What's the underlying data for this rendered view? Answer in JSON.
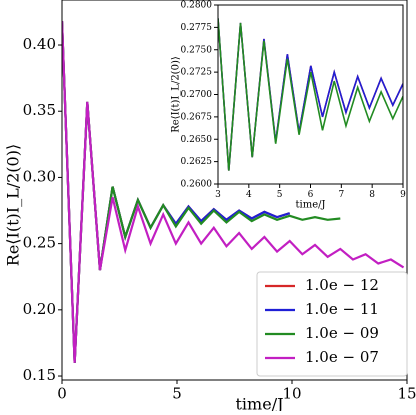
{
  "chart_data": [
    {
      "type": "line",
      "xlabel": "time/J",
      "ylabel": "Re⟨I(t)I_L/2(0)⟩",
      "x": [
        0,
        0.55,
        1.1,
        1.65,
        2.2,
        2.75,
        3.3,
        3.85,
        4.4,
        4.95,
        5.5,
        6.05,
        6.6,
        7.15,
        7.7,
        8.25,
        8.8,
        9.35,
        9.9,
        10.45,
        11,
        11.55,
        12.1,
        12.65,
        13.2,
        13.75,
        14.3,
        14.85
      ],
      "xlim": [
        0,
        15
      ],
      "xticks": [
        0,
        5,
        10,
        15
      ],
      "ylim": [
        0.147,
        0.434
      ],
      "yticks": [
        {
          "value": 0.15,
          "label": "0.15"
        },
        {
          "value": 0.2,
          "label": "0.20"
        },
        {
          "value": 0.25,
          "label": "0.25"
        },
        {
          "value": 0.3,
          "label": "0.30"
        },
        {
          "value": 0.35,
          "label": "0.35"
        },
        {
          "value": 0.4,
          "label": "0.40"
        }
      ],
      "legend": "lower right",
      "series": [
        {
          "name": "1.0e − 12",
          "color": "#d62728",
          "values": [
            0.418,
            0.16,
            0.357,
            0.23,
            0.293,
            0.255,
            0.283,
            0.262,
            0.279,
            0.265,
            0.278,
            0.267,
            0.276,
            0.268,
            0.275,
            0.269,
            0.274,
            0.27,
            0.273,
            null,
            null,
            null,
            null,
            null,
            null,
            null,
            null,
            null
          ]
        },
        {
          "name": "1.0e − 11",
          "color": "#1f1fd6",
          "values": [
            0.418,
            0.16,
            0.357,
            0.23,
            0.293,
            0.255,
            0.283,
            0.262,
            0.279,
            0.265,
            0.278,
            0.267,
            0.276,
            0.268,
            0.275,
            0.269,
            0.274,
            0.27,
            0.273,
            null,
            null,
            null,
            null,
            null,
            null,
            null,
            null,
            null
          ]
        },
        {
          "name": "1.0e − 09",
          "color": "#228b22",
          "values": [
            0.418,
            0.16,
            0.357,
            0.23,
            0.293,
            0.255,
            0.283,
            0.262,
            0.279,
            0.263,
            0.277,
            0.265,
            0.275,
            0.266,
            0.274,
            0.267,
            0.272,
            0.268,
            0.271,
            0.268,
            0.27,
            0.268,
            0.269,
            null,
            null,
            null,
            null,
            null
          ]
        },
        {
          "name": "1.0e − 07",
          "color": "#c21fc2",
          "values": [
            0.418,
            0.16,
            0.357,
            0.23,
            0.285,
            0.245,
            0.278,
            0.25,
            0.272,
            0.25,
            0.266,
            0.25,
            0.262,
            0.248,
            0.258,
            0.246,
            0.255,
            0.244,
            0.252,
            0.242,
            0.249,
            0.24,
            0.246,
            0.238,
            0.242,
            0.235,
            0.238,
            0.232
          ]
        }
      ]
    },
    {
      "type": "line",
      "xlabel": "time/J",
      "ylabel": "Re⟨I(t)I_L/2(0)⟩",
      "x": [
        3,
        3.35,
        3.73,
        4.11,
        4.49,
        4.87,
        5.25,
        5.63,
        6.01,
        6.39,
        6.77,
        7.15,
        7.53,
        7.91,
        8.29,
        8.67,
        9
      ],
      "xlim": [
        3,
        9
      ],
      "xticks": [
        3,
        4,
        5,
        6,
        7,
        8,
        9
      ],
      "ylim": [
        0.26,
        0.28
      ],
      "yticks": [
        {
          "value": 0.26,
          "label": "0.2600"
        },
        {
          "value": 0.2625,
          "label": "0.2625"
        },
        {
          "value": 0.265,
          "label": "0.2650"
        },
        {
          "value": 0.2675,
          "label": "0.2675"
        },
        {
          "value": 0.27,
          "label": "0.2700"
        },
        {
          "value": 0.2725,
          "label": "0.2725"
        },
        {
          "value": 0.275,
          "label": "0.2750"
        },
        {
          "value": 0.2775,
          "label": "0.2775"
        },
        {
          "value": 0.28,
          "label": "0.2800"
        }
      ],
      "series": [
        {
          "color": "#d62728",
          "values": [
            0.2785,
            0.2615,
            0.278,
            0.263,
            0.2762,
            0.2647,
            0.2745,
            0.2658,
            0.2732,
            0.2675,
            0.2725,
            0.268,
            0.272,
            0.2685,
            0.2718,
            0.2688,
            0.2712
          ]
        },
        {
          "color": "#1f1fd6",
          "values": [
            0.2785,
            0.2615,
            0.278,
            0.263,
            0.2762,
            0.2647,
            0.2745,
            0.2658,
            0.2732,
            0.2675,
            0.2725,
            0.268,
            0.272,
            0.2685,
            0.2718,
            0.2688,
            0.2712
          ]
        },
        {
          "color": "#228b22",
          "values": [
            0.2785,
            0.2615,
            0.278,
            0.263,
            0.276,
            0.2645,
            0.274,
            0.2655,
            0.2725,
            0.266,
            0.2715,
            0.2665,
            0.2708,
            0.267,
            0.2703,
            0.2673,
            0.2698
          ]
        }
      ]
    }
  ]
}
